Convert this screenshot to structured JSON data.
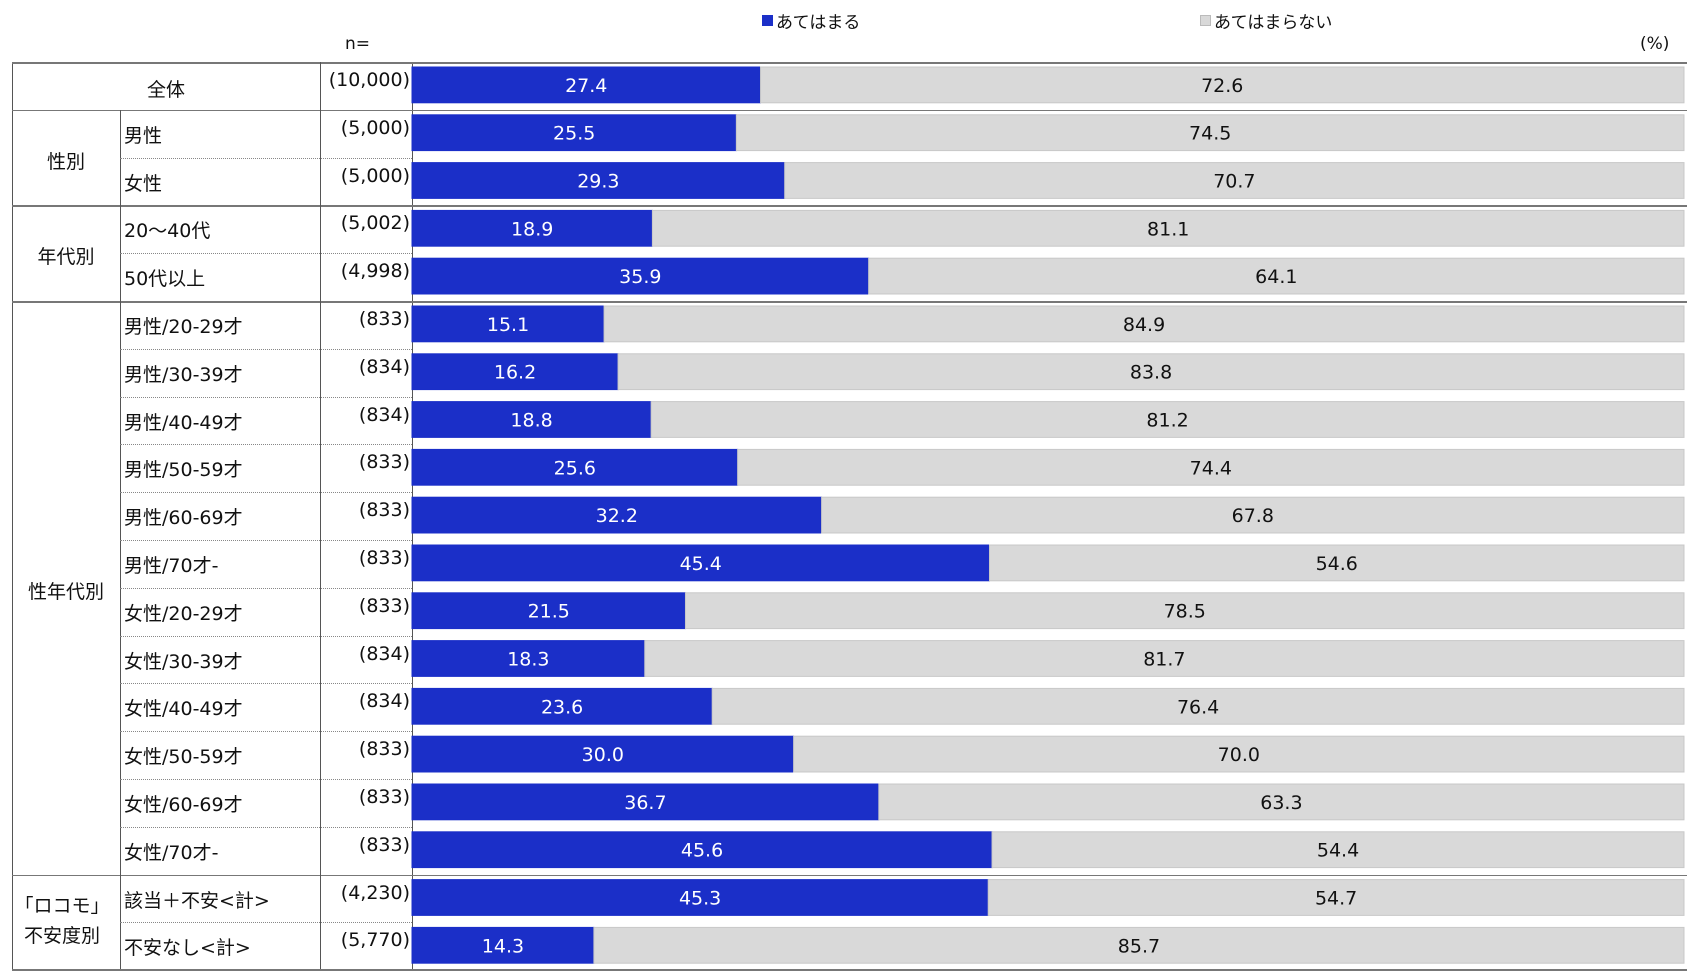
{
  "legend": [
    {
      "label": "あてはまる",
      "color": "#1b2fc8"
    },
    {
      "label": "あてはまらない",
      "color": "#d9d9d9"
    }
  ],
  "header": {
    "n_label": "n=",
    "unit": "(%)"
  },
  "groups": [
    {
      "label": "全体"
    },
    {
      "label": "性別"
    },
    {
      "label": "年代別"
    },
    {
      "label": "性年代別"
    },
    {
      "label": "「ロコモ」不安度別"
    }
  ],
  "rows": [
    {
      "label": "",
      "n": "(10,000)"
    },
    {
      "label": "男性",
      "n": "(5,000)"
    },
    {
      "label": "女性",
      "n": "(5,000)"
    },
    {
      "label": "20〜40代",
      "n": "(5,002)"
    },
    {
      "label": "50代以上",
      "n": "(4,998)"
    },
    {
      "label": "男性/20-29才",
      "n": "(833)"
    },
    {
      "label": "男性/30-39才",
      "n": "(834)"
    },
    {
      "label": "男性/40-49才",
      "n": "(834)"
    },
    {
      "label": "男性/50-59才",
      "n": "(833)"
    },
    {
      "label": "男性/60-69才",
      "n": "(833)"
    },
    {
      "label": "男性/70才-",
      "n": "(833)"
    },
    {
      "label": "女性/20-29才",
      "n": "(833)"
    },
    {
      "label": "女性/30-39才",
      "n": "(834)"
    },
    {
      "label": "女性/40-49才",
      "n": "(834)"
    },
    {
      "label": "女性/50-59才",
      "n": "(833)"
    },
    {
      "label": "女性/60-69才",
      "n": "(833)"
    },
    {
      "label": "女性/70才-",
      "n": "(833)"
    },
    {
      "label": "該当＋不安<計>",
      "n": "(4,230)"
    },
    {
      "label": "不安なし<計>",
      "n": "(5,770)"
    }
  ],
  "chart_data": {
    "type": "bar",
    "orientation": "horizontal",
    "stacked": true,
    "xlim": [
      0,
      100
    ],
    "unit": "(%)",
    "categories": [
      "全体",
      "男性",
      "女性",
      "20〜40代",
      "50代以上",
      "男性/20-29才",
      "男性/30-39才",
      "男性/40-49才",
      "男性/50-59才",
      "男性/60-69才",
      "男性/70才-",
      "女性/20-29才",
      "女性/30-39才",
      "女性/40-49才",
      "女性/50-59才",
      "女性/60-69才",
      "女性/70才-",
      "該当＋不安<計>",
      "不安なし<計>"
    ],
    "series": [
      {
        "name": "あてはまる",
        "color": "#1b2fc8",
        "values": [
          27.4,
          25.5,
          29.3,
          18.9,
          35.9,
          15.1,
          16.2,
          18.8,
          25.6,
          32.2,
          45.4,
          21.5,
          18.3,
          23.6,
          30.0,
          36.7,
          45.6,
          45.3,
          14.3
        ]
      },
      {
        "name": "あてはまらない",
        "color": "#d9d9d9",
        "values": [
          72.6,
          74.5,
          70.7,
          81.1,
          64.1,
          84.9,
          83.8,
          81.2,
          74.4,
          67.8,
          54.6,
          78.5,
          81.7,
          76.4,
          70.0,
          63.3,
          54.4,
          54.7,
          85.7
        ]
      }
    ]
  }
}
